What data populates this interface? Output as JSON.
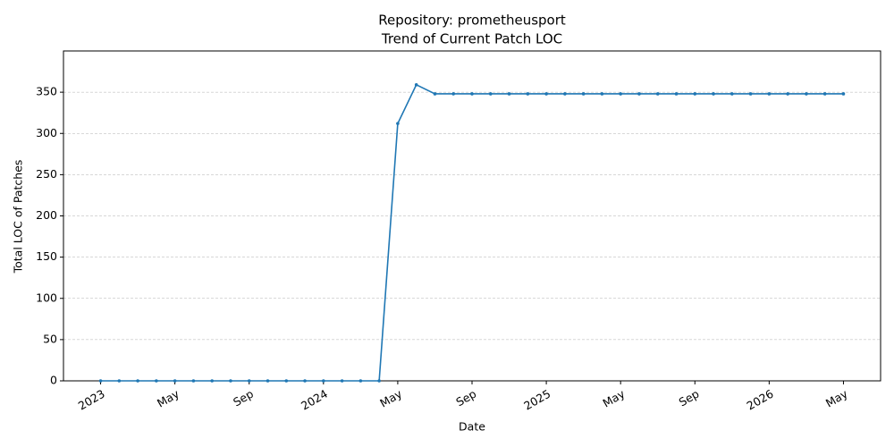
{
  "chart_data": {
    "type": "line",
    "title": [
      "Repository: prometheusport",
      "Trend of Current Patch LOC"
    ],
    "x_label": "Date",
    "y_label": "Total LOC of Patches",
    "x": [
      "2023-01",
      "2023-02",
      "2023-03",
      "2023-04",
      "2023-05",
      "2023-06",
      "2023-07",
      "2023-08",
      "2023-09",
      "2023-10",
      "2023-11",
      "2023-12",
      "2024-01",
      "2024-02",
      "2024-03",
      "2024-04",
      "2024-05",
      "2024-06",
      "2024-07",
      "2024-08",
      "2024-09",
      "2024-10",
      "2024-11",
      "2024-12",
      "2025-01",
      "2025-02",
      "2025-03",
      "2025-04",
      "2025-05",
      "2025-06",
      "2025-07",
      "2025-08",
      "2025-09",
      "2025-10",
      "2025-11",
      "2025-12",
      "2026-01",
      "2026-02",
      "2026-03",
      "2026-04",
      "2026-05"
    ],
    "values": [
      0,
      0,
      0,
      0,
      0,
      0,
      0,
      0,
      0,
      0,
      0,
      0,
      0,
      0,
      0,
      0,
      312,
      359,
      348,
      348,
      348,
      348,
      348,
      348,
      348,
      348,
      348,
      348,
      348,
      348,
      348,
      348,
      348,
      348,
      348,
      348,
      348,
      348,
      348,
      348,
      348
    ],
    "color": "#1f77b4",
    "xlim": [
      "2022-11",
      "2026-07"
    ],
    "xticks": [
      {
        "value": "2023-01",
        "label": "2023"
      },
      {
        "value": "2023-05",
        "label": "May"
      },
      {
        "value": "2023-09",
        "label": "Sep"
      },
      {
        "value": "2024-01",
        "label": "2024"
      },
      {
        "value": "2024-05",
        "label": "May"
      },
      {
        "value": "2024-09",
        "label": "Sep"
      },
      {
        "value": "2025-01",
        "label": "2025"
      },
      {
        "value": "2025-05",
        "label": "May"
      },
      {
        "value": "2025-09",
        "label": "Sep"
      },
      {
        "value": "2026-01",
        "label": "2026"
      },
      {
        "value": "2026-05",
        "label": "May"
      }
    ],
    "ylim": [
      0,
      400
    ],
    "yticks": [
      0,
      50,
      100,
      150,
      200,
      250,
      300,
      350
    ],
    "grid": true
  }
}
